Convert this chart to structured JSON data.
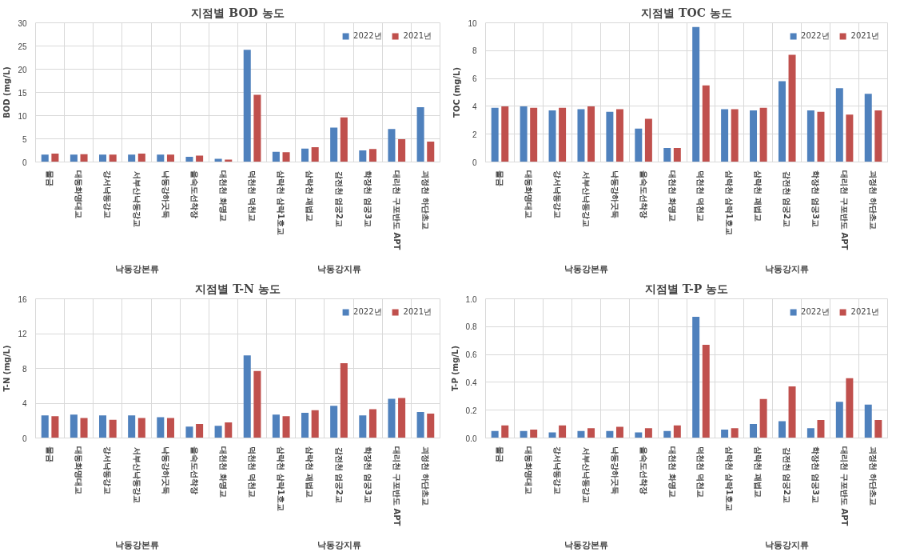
{
  "chart_data": [
    {
      "type": "bar",
      "title": "지점별 BOD 농도",
      "ylabel": "BOD (mg/L)",
      "categories": [
        "물금",
        "대동화명대교",
        "강서낙동강교",
        "서부산낙동강교",
        "낙동강하굿둑",
        "을숙도선착장",
        "대천천 화명교",
        "덕천천 덕천교",
        "삼락천 삼락1호교",
        "삼락천 괘법교",
        "감전천 엄궁2교",
        "학장천 엄궁3교",
        "대리천 구포반도 APT",
        "괴정천 하단초교"
      ],
      "series": [
        {
          "name": "2022년",
          "color": "#4f81bd",
          "values": [
            1.6,
            1.6,
            1.6,
            1.6,
            1.6,
            1.1,
            0.7,
            24.2,
            2.2,
            2.9,
            7.4,
            2.5,
            7.1,
            11.8
          ]
        },
        {
          "name": "2021년",
          "color": "#c0504d",
          "values": [
            1.8,
            1.7,
            1.6,
            1.8,
            1.6,
            1.4,
            0.5,
            14.5,
            2.1,
            3.2,
            9.6,
            2.8,
            4.9,
            4.4
          ]
        }
      ],
      "ylim": [
        0,
        30
      ],
      "yticks": [
        0,
        5,
        10,
        15,
        20,
        25,
        30
      ],
      "grid": true,
      "legend": "top right",
      "annotations": [
        "낙동강본류",
        "낙동강지류"
      ]
    },
    {
      "type": "bar",
      "title": "지점별 TOC 농도",
      "ylabel": "TOC (mg/L)",
      "categories": [
        "물금",
        "대동화명대교",
        "강서낙동강교",
        "서부산낙동강교",
        "낙동강하굿둑",
        "을숙도선착장",
        "대천천 화명교",
        "덕천천 덕천교",
        "삼락천 삼락1호교",
        "삼락천 괘법교",
        "감전천 엄궁2교",
        "학장천 엄궁3교",
        "대리천 구포반도 APT",
        "괴정천 하단초교"
      ],
      "series": [
        {
          "name": "2022년",
          "color": "#4f81bd",
          "values": [
            3.9,
            4.0,
            3.7,
            3.8,
            3.6,
            2.4,
            1.0,
            9.7,
            3.8,
            3.7,
            5.8,
            3.7,
            5.3,
            4.9
          ]
        },
        {
          "name": "2021년",
          "color": "#c0504d",
          "values": [
            4.0,
            3.9,
            3.9,
            4.0,
            3.8,
            3.1,
            1.0,
            5.5,
            3.8,
            3.9,
            7.7,
            3.6,
            3.4,
            3.7
          ]
        }
      ],
      "ylim": [
        0,
        10
      ],
      "yticks": [
        0,
        2,
        4,
        6,
        8,
        10
      ],
      "grid": true,
      "legend": "top right",
      "annotations": [
        "낙동강본류",
        "낙동강지류"
      ]
    },
    {
      "type": "bar",
      "title": "지점별 T-N 농도",
      "ylabel": "T-N (mg/L)",
      "categories": [
        "물금",
        "대동화명대교",
        "강서낙동강교",
        "서부산낙동강교",
        "낙동강하굿둑",
        "을숙도선착장",
        "대천천 화명교",
        "덕천천 덕천교",
        "삼락천 삼락1호교",
        "삼락천 괘법교",
        "감전천 엄궁2교",
        "학장천 엄궁3교",
        "대리천 구포반도 APT",
        "괴정천 하단초교"
      ],
      "series": [
        {
          "name": "2022년",
          "color": "#4f81bd",
          "values": [
            2.6,
            2.7,
            2.6,
            2.6,
            2.4,
            1.3,
            1.4,
            9.5,
            2.7,
            2.9,
            3.7,
            2.6,
            4.5,
            3.0
          ]
        },
        {
          "name": "2021년",
          "color": "#c0504d",
          "values": [
            2.5,
            2.3,
            2.1,
            2.3,
            2.3,
            1.6,
            1.8,
            7.7,
            2.5,
            3.2,
            8.6,
            3.3,
            4.6,
            2.8
          ]
        }
      ],
      "ylim": [
        0,
        16
      ],
      "yticks": [
        0,
        4,
        8,
        12,
        16
      ],
      "grid": true,
      "legend": "top right",
      "annotations": [
        "낙동강본류",
        "낙동강지류"
      ]
    },
    {
      "type": "bar",
      "title": "지점별 T-P 농도",
      "ylabel": "T-P (mg/L)",
      "categories": [
        "물금",
        "대동화명대교",
        "강서낙동강교",
        "서부산낙동강교",
        "낙동강하굿둑",
        "을숙도선착장",
        "대천천 화명교",
        "덕천천 덕천교",
        "삼락천 삼락1호교",
        "삼락천 괘법교",
        "감전천 엄궁2교",
        "학장천 엄궁3교",
        "대리천 구포반도 APT",
        "괴정천 하단초교"
      ],
      "series": [
        {
          "name": "2022년",
          "color": "#4f81bd",
          "values": [
            0.05,
            0.05,
            0.04,
            0.05,
            0.05,
            0.04,
            0.05,
            0.87,
            0.06,
            0.1,
            0.12,
            0.07,
            0.26,
            0.24
          ]
        },
        {
          "name": "2021년",
          "color": "#c0504d",
          "values": [
            0.09,
            0.06,
            0.09,
            0.07,
            0.08,
            0.07,
            0.09,
            0.67,
            0.07,
            0.28,
            0.37,
            0.13,
            0.43,
            0.13
          ]
        }
      ],
      "ylim": [
        0,
        1
      ],
      "yticks": [
        {
          "value": 0,
          "label": "0.0"
        },
        {
          "value": 0.2,
          "label": "0.2"
        },
        {
          "value": 0.4,
          "label": "0.4"
        },
        {
          "value": 0.6,
          "label": "0.6"
        },
        {
          "value": 0.8,
          "label": "0.8"
        },
        {
          "value": 1,
          "label": "1.0"
        }
      ],
      "grid": true,
      "legend": "top right",
      "annotations": [
        "낙동강본류",
        "낙동강지류"
      ]
    }
  ]
}
